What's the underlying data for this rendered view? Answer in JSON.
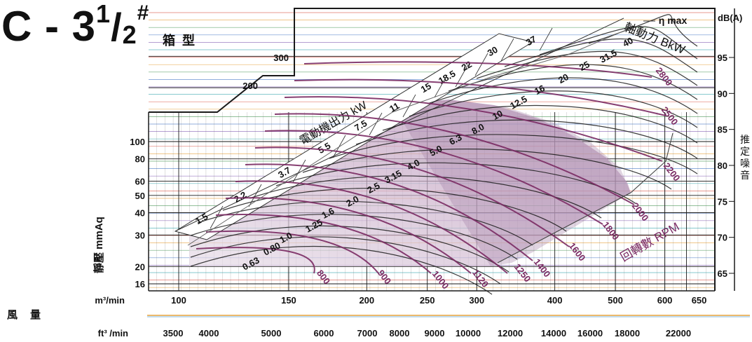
{
  "title": {
    "model_prefix": "C - 3",
    "frac_num": "1",
    "frac_den": "2",
    "suffix": "#",
    "subtitle": "箱型"
  },
  "axes": {
    "ylabel": "靜壓 mmAq",
    "flow_label": "風量",
    "x_m3_unit": "m³/min",
    "x_ft3_unit": "ft³ /min",
    "db_label": "dB(A)",
    "noise_label": "推定噪音",
    "motor_label": "電動機出力 kW",
    "shaft_label": "軸動力 BkW",
    "rpm_label": "回轉數 RPM",
    "eta_label": "η max"
  },
  "colors": {
    "rpm_curve": "#7a2a63",
    "bkw_curve": "#1a1a1a",
    "efficiency_band": "#c9b1c7",
    "grid_dark": "#1a1a1a",
    "frame": "#1a1a1a"
  },
  "chart_data": {
    "type": "line",
    "title": "C - 3½# 箱型",
    "xscale": "log",
    "yscale": "log",
    "x_m3_ticks": [
      "100",
      "150",
      "200",
      "250",
      "300",
      "400",
      "500",
      "600",
      "650"
    ],
    "x_m3_values": [
      100,
      150,
      200,
      250,
      300,
      400,
      500,
      600,
      650
    ],
    "x_ft3_ticks": [
      "3500",
      "4000",
      "5000",
      "6000",
      "7000",
      "8000",
      "9000",
      "10000",
      "12000",
      "14000",
      "16000",
      "18000",
      "22000"
    ],
    "x_ft3_values": [
      3500,
      4000,
      5000,
      6000,
      7000,
      8000,
      9000,
      10000,
      12000,
      14000,
      16000,
      18000,
      22000
    ],
    "y_ticks": [
      "16",
      "20",
      "30",
      "40",
      "50",
      "60",
      "80",
      "100",
      "200",
      "300"
    ],
    "y_values": [
      16,
      20,
      30,
      40,
      50,
      60,
      80,
      100,
      200,
      300
    ],
    "db_ticks": [
      "65",
      "70",
      "75",
      "80",
      "85",
      "90",
      "95"
    ],
    "db_values": [
      65,
      70,
      75,
      80,
      85,
      90,
      95
    ],
    "motor_kw": [
      "1.5",
      "2.2",
      "3.7",
      "5.5",
      "7.5",
      "11",
      "15",
      "18.5",
      "22",
      "30",
      "37"
    ],
    "rpm_series": [
      {
        "name": "800",
        "label": "800"
      },
      {
        "name": "900",
        "label": "900"
      },
      {
        "name": "1000",
        "label": "1000"
      },
      {
        "name": "1120",
        "label": "1120"
      },
      {
        "name": "1250",
        "label": "1250"
      },
      {
        "name": "1400",
        "label": "1400"
      },
      {
        "name": "1600",
        "label": "1600"
      },
      {
        "name": "1800",
        "label": "1800"
      },
      {
        "name": "2000",
        "label": "2000"
      },
      {
        "name": "2200",
        "label": "2200"
      },
      {
        "name": "2500",
        "label": "2500"
      },
      {
        "name": "2800",
        "label": "2800"
      }
    ],
    "bkw_series": [
      {
        "name": "0.63",
        "label": "0.63"
      },
      {
        "name": "0.80",
        "label": "0.80"
      },
      {
        "name": "1.0",
        "label": "1.0"
      },
      {
        "name": "1.25",
        "label": "1.25"
      },
      {
        "name": "1.6",
        "label": "1.6"
      },
      {
        "name": "2.0",
        "label": "2.0"
      },
      {
        "name": "2.5",
        "label": "2.5"
      },
      {
        "name": "3.15",
        "label": "3.15"
      },
      {
        "name": "4.0",
        "label": "4.0"
      },
      {
        "name": "5.0",
        "label": "5.0"
      },
      {
        "name": "6.3",
        "label": "6.3"
      },
      {
        "name": "8.0",
        "label": "8.0"
      },
      {
        "name": "10",
        "label": "10"
      },
      {
        "name": "12.5",
        "label": "12.5"
      },
      {
        "name": "16",
        "label": "16"
      },
      {
        "name": "20",
        "label": "20"
      },
      {
        "name": "25",
        "label": "25"
      },
      {
        "name": "31.5",
        "label": "31.5"
      },
      {
        "name": "40",
        "label": "40"
      }
    ],
    "frame_labels": [
      "200",
      "300"
    ]
  }
}
